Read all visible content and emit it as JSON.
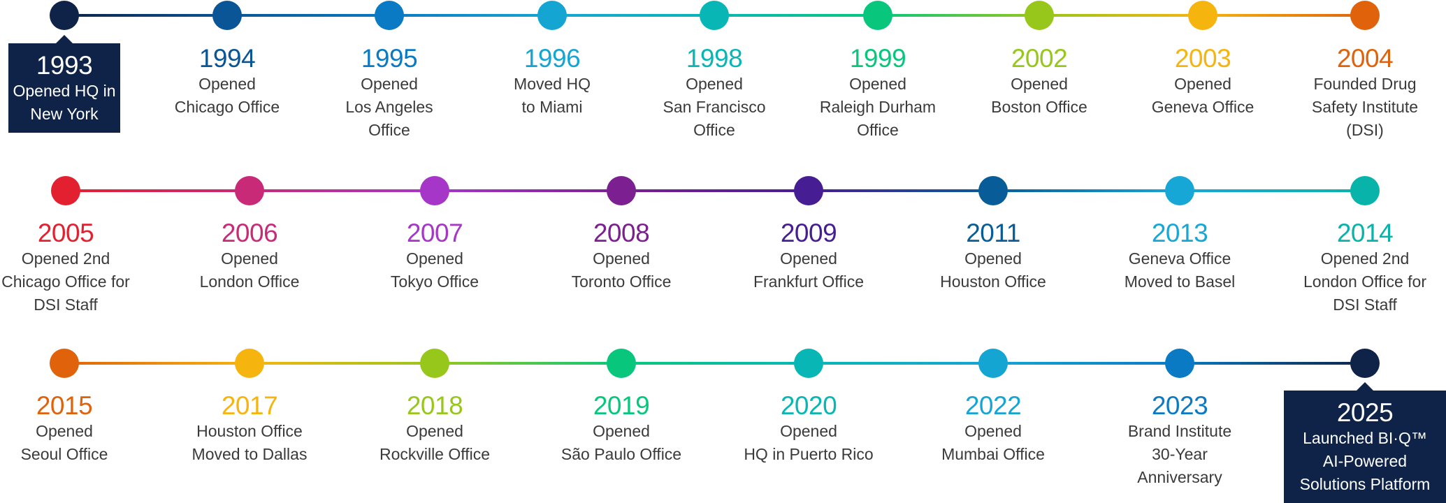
{
  "rows": [
    {
      "milestones": [
        {
          "year": "1993",
          "text": "Opened HQ in\nNew York",
          "color": "#0e2347",
          "boxed": true
        },
        {
          "year": "1994",
          "text": "Opened\nChicago Office",
          "color": "#0a5596"
        },
        {
          "year": "1995",
          "text": "Opened\nLos Angeles\nOffice",
          "color": "#0a7ac4"
        },
        {
          "year": "1996",
          "text": "Moved HQ\nto Miami",
          "color": "#15a5d3"
        },
        {
          "year": "1998",
          "text": "Opened\nSan Francisco\nOffice",
          "color": "#08b7b5"
        },
        {
          "year": "1999",
          "text": "Opened\nRaleigh Durham\nOffice",
          "color": "#08c77c"
        },
        {
          "year": "2002",
          "text": "Opened\nBoston Office",
          "color": "#97c71b"
        },
        {
          "year": "2003",
          "text": "Opened\nGeneva Office",
          "color": "#f6b40f"
        },
        {
          "year": "2004",
          "text": "Founded Drug\nSafety Institute\n(DSI)",
          "color": "#e0630c"
        }
      ]
    },
    {
      "milestones": [
        {
          "year": "2005",
          "text": "Opened 2nd\nChicago Office for\nDSI Staff",
          "color": "#e32030"
        },
        {
          "year": "2006",
          "text": "Opened\nLondon Office",
          "color": "#c82a78"
        },
        {
          "year": "2007",
          "text": "Opened\nTokyo Office",
          "color": "#a636c8"
        },
        {
          "year": "2008",
          "text": "Opened\nToronto Office",
          "color": "#7c1f91"
        },
        {
          "year": "2009",
          "text": "Opened\nFrankfurt Office",
          "color": "#471d94"
        },
        {
          "year": "2011",
          "text": "Opened\nHouston Office",
          "color": "#085d98"
        },
        {
          "year": "2013",
          "text": "Geneva Office\nMoved to Basel",
          "color": "#17a7d6"
        },
        {
          "year": "2014",
          "text": "Opened 2nd\nLondon Office for\nDSI Staff",
          "color": "#08b4a9"
        }
      ]
    },
    {
      "milestones": [
        {
          "year": "2015",
          "text": "Opened\nSeoul Office",
          "color": "#e0630c"
        },
        {
          "year": "2017",
          "text": "Houston Office\nMoved to Dallas",
          "color": "#f6b40f"
        },
        {
          "year": "2018",
          "text": "Opened\nRockville Office",
          "color": "#97c71b"
        },
        {
          "year": "2019",
          "text": "Opened\nSão Paulo Office",
          "color": "#08c77c"
        },
        {
          "year": "2020",
          "text": "Opened\nHQ in Puerto Rico",
          "color": "#08b7b5"
        },
        {
          "year": "2022",
          "text": "Opened\nMumbai Office",
          "color": "#15a5d3"
        },
        {
          "year": "2023",
          "text": "Brand Institute\n30-Year Anniversary",
          "color": "#0a7ac4"
        },
        {
          "year": "2025",
          "text": "Launched BI·Q™\nAI-Powered\nSolutions Platform",
          "color": "#0e2347",
          "boxed": true
        }
      ]
    }
  ]
}
